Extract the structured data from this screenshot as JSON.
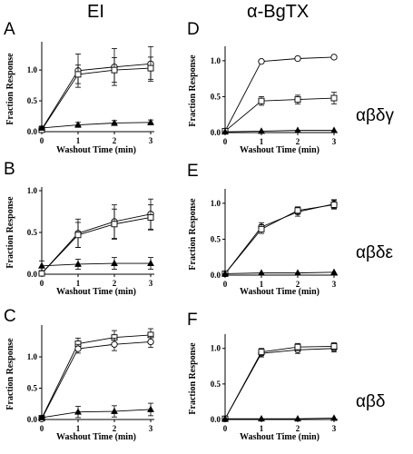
{
  "figure": {
    "column_headers": [
      "EI",
      "α-BgTX"
    ],
    "row_labels": [
      "αβδγ",
      "αβδε",
      "αβδ"
    ]
  },
  "colors": {
    "line": "#000000",
    "background": "#ffffff"
  },
  "chart_data": [
    {
      "panel": "A",
      "type": "line",
      "xlabel": "Washout Time (min)",
      "ylabel": "Fraction Response",
      "x": [
        0,
        1,
        2,
        3
      ],
      "xticks": [
        "0",
        "1",
        "2",
        "3"
      ],
      "yticks": [
        "0.0",
        "0.5",
        "1.0"
      ],
      "ylim": [
        0,
        1.4
      ],
      "series": [
        {
          "marker": "circle",
          "values": [
            0.04,
            0.99,
            1.05,
            1.1
          ],
          "errors": [
            0.05,
            0.27,
            0.3,
            0.28
          ]
        },
        {
          "marker": "square",
          "values": [
            0.03,
            0.93,
            1.0,
            1.03
          ],
          "errors": [
            0.05,
            0.15,
            0.2,
            0.18
          ]
        },
        {
          "marker": "triangle",
          "values": [
            0.06,
            0.11,
            0.14,
            0.15
          ],
          "errors": [
            0.03,
            0.04,
            0.04,
            0.04
          ]
        }
      ]
    },
    {
      "panel": "B",
      "type": "line",
      "xlabel": "Washout Time (min)",
      "ylabel": "Fraction Response",
      "x": [
        0,
        1,
        2,
        3
      ],
      "xticks": [
        "0",
        "1",
        "2",
        "3"
      ],
      "yticks": [
        "0.0",
        "0.5",
        "1.0"
      ],
      "ylim": [
        0,
        1.0
      ],
      "series": [
        {
          "marker": "circle",
          "values": [
            0.01,
            0.49,
            0.63,
            0.72
          ],
          "errors": [
            0.02,
            0.17,
            0.2,
            0.18
          ]
        },
        {
          "marker": "square",
          "values": [
            0.01,
            0.47,
            0.6,
            0.68
          ],
          "errors": [
            0.02,
            0.15,
            0.18,
            0.15
          ]
        },
        {
          "marker": "triangle",
          "values": [
            0.1,
            0.12,
            0.13,
            0.13
          ],
          "errors": [
            0.06,
            0.06,
            0.07,
            0.07
          ]
        }
      ]
    },
    {
      "panel": "C",
      "type": "line",
      "xlabel": "Washout Time (min)",
      "ylabel": "Fraction Response",
      "x": [
        0,
        1,
        2,
        3
      ],
      "xticks": [
        "0",
        "1",
        "2",
        "3"
      ],
      "yticks": [
        "0.0",
        "0.5",
        "1.0"
      ],
      "ylim": [
        0,
        1.45
      ],
      "series": [
        {
          "marker": "square",
          "values": [
            0.02,
            1.21,
            1.31,
            1.35
          ],
          "errors": [
            0.03,
            0.09,
            0.11,
            0.1
          ]
        },
        {
          "marker": "circle",
          "values": [
            0.01,
            1.13,
            1.2,
            1.24
          ],
          "errors": [
            0.02,
            0.07,
            0.1,
            0.09
          ]
        },
        {
          "marker": "triangle",
          "values": [
            0.03,
            0.12,
            0.13,
            0.16
          ],
          "errors": [
            0.02,
            0.09,
            0.09,
            0.1
          ]
        }
      ]
    },
    {
      "panel": "D",
      "type": "line",
      "xlabel": "Washout Time  (min)",
      "ylabel": "Fraction Response",
      "x": [
        0,
        1,
        2,
        3
      ],
      "xticks": [
        "0",
        "1",
        "2",
        "3"
      ],
      "yticks": [
        "0.0",
        "0.5",
        "1.0"
      ],
      "ylim": [
        0,
        1.15
      ],
      "series": [
        {
          "marker": "circle",
          "values": [
            0.02,
            0.99,
            1.03,
            1.05
          ],
          "errors": [
            0.0,
            0.0,
            0.0,
            0.0
          ]
        },
        {
          "marker": "square",
          "values": [
            0.02,
            0.44,
            0.46,
            0.48
          ],
          "errors": [
            0.02,
            0.06,
            0.06,
            0.08
          ]
        },
        {
          "marker": "triangle",
          "values": [
            0.01,
            0.02,
            0.03,
            0.03
          ],
          "errors": [
            0.0,
            0.0,
            0.0,
            0.0
          ]
        }
      ]
    },
    {
      "panel": "E",
      "type": "line",
      "xlabel": "Washout Time (min)",
      "ylabel": "Fraction Response",
      "x": [
        0,
        1,
        2,
        3
      ],
      "xticks": [
        "0",
        "1",
        "2",
        "3"
      ],
      "yticks": [
        "0.0",
        "0.5",
        "1.0"
      ],
      "ylim": [
        0,
        1.15
      ],
      "series": [
        {
          "marker": "circle",
          "values": [
            0.02,
            0.67,
            0.88,
            0.99
          ],
          "errors": [
            0.01,
            0.06,
            0.06,
            0.06
          ]
        },
        {
          "marker": "square",
          "values": [
            0.02,
            0.64,
            0.9,
            0.98
          ],
          "errors": [
            0.01,
            0.06,
            0.05,
            0.06
          ]
        },
        {
          "marker": "triangle",
          "values": [
            0.02,
            0.03,
            0.03,
            0.04
          ],
          "errors": [
            0.0,
            0.0,
            0.0,
            0.0
          ]
        }
      ]
    },
    {
      "panel": "F",
      "type": "line",
      "xlabel": "Washout Time (min)",
      "ylabel": "Fraction Response",
      "x": [
        0,
        1,
        2,
        3
      ],
      "xticks": [
        "0",
        "1",
        "2",
        "3"
      ],
      "yticks": [
        "0.0",
        "0.5",
        "1.0"
      ],
      "ylim": [
        0,
        1.15
      ],
      "series": [
        {
          "marker": "circle",
          "values": [
            0.01,
            0.93,
            0.98,
            1.0
          ],
          "errors": [
            0.01,
            0.05,
            0.05,
            0.05
          ]
        },
        {
          "marker": "square",
          "values": [
            0.01,
            0.95,
            1.02,
            1.03
          ],
          "errors": [
            0.01,
            0.05,
            0.05,
            0.05
          ]
        },
        {
          "marker": "triangle",
          "values": [
            0.01,
            0.01,
            0.01,
            0.02
          ],
          "errors": [
            0.0,
            0.0,
            0.0,
            0.0
          ]
        }
      ]
    }
  ]
}
